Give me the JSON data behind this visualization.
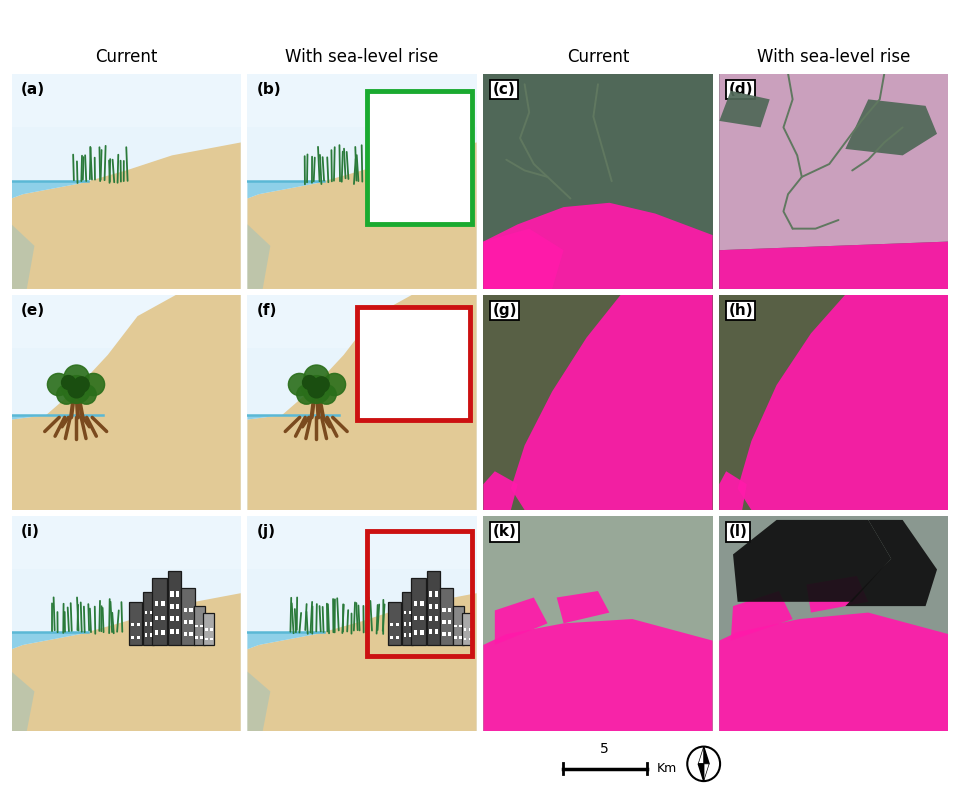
{
  "title_col1": "Current",
  "title_col2": "With sea-level rise",
  "title_col3": "Current",
  "title_col4": "With sea-level rise",
  "sky_light": "#e8f4fc",
  "sky_cloud": "#f0f8ff",
  "sky_mid": "#d8eef8",
  "sand_color": "#e2ca96",
  "water_color": "#8ed0e8",
  "water_deep": "#6bbcdb",
  "water_line_color": "#5ab8d5",
  "grass_color": "#2a7a3a",
  "grass_dark": "#1e5c2c",
  "palm_green": "#2a6e1a",
  "palm_dark": "#1a4e10",
  "palm_trunk": "#7a4a1e",
  "building_dark": "#4e4e4e",
  "building_mid": "#787878",
  "building_light": "#a8a8a8",
  "building_outline": "#1e1e1e",
  "green_box": "#1aaa30",
  "red_box": "#cc1111",
  "pink": "#ff1aaa",
  "light_pink": "#dca8cc",
  "black": "#111111",
  "bg": "#ffffff",
  "sat_marsh": "#506858",
  "sat_elev": "#586045",
  "sat_urban": "#98a898",
  "sat_urban_l": "#8a9890"
}
